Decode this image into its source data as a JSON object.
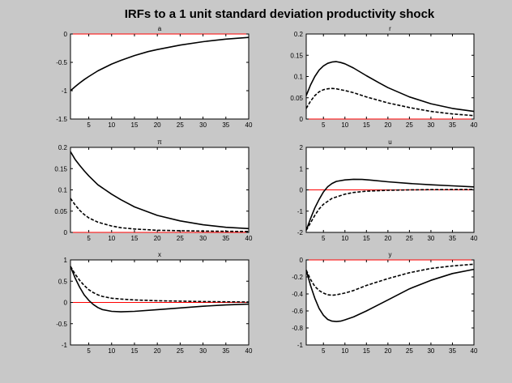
{
  "figure_title": "IRFs to a 1 unit standard deviation productivity shock",
  "colors": {
    "background": "#c8c8c8",
    "axes": "#ffffff",
    "zero_line": "#ff0000",
    "series": "#000000"
  },
  "chart_data": [
    {
      "type": "line",
      "title": "a",
      "xlim": [
        1,
        40
      ],
      "ylim": [
        -1.5,
        0
      ],
      "xticks": [
        5,
        10,
        15,
        20,
        25,
        30,
        35,
        40
      ],
      "yticks": [
        -1.5,
        -1,
        -0.5,
        0
      ],
      "ytick_labels": [
        "-1.5",
        "-1",
        "-0.5",
        "0"
      ],
      "zero_line": 0,
      "series": [
        {
          "style": "solid",
          "points": [
            [
              1,
              -1.0
            ],
            [
              2,
              -0.93
            ],
            [
              3,
              -0.865
            ],
            [
              4,
              -0.805
            ],
            [
              5,
              -0.75
            ],
            [
              7,
              -0.65
            ],
            [
              10,
              -0.53
            ],
            [
              12,
              -0.465
            ],
            [
              15,
              -0.38
            ],
            [
              18,
              -0.31
            ],
            [
              20,
              -0.275
            ],
            [
              25,
              -0.195
            ],
            [
              30,
              -0.135
            ],
            [
              35,
              -0.09
            ],
            [
              40,
              -0.06
            ]
          ]
        }
      ]
    },
    {
      "type": "line",
      "title": "r",
      "xlim": [
        1,
        40
      ],
      "ylim": [
        0,
        0.2
      ],
      "xticks": [
        5,
        10,
        15,
        20,
        25,
        30,
        35,
        40
      ],
      "yticks": [
        0,
        0.05,
        0.1,
        0.15,
        0.2
      ],
      "ytick_labels": [
        "0",
        "0.05",
        "0.1",
        "0.15",
        "0.2"
      ],
      "zero_line": 0,
      "series": [
        {
          "style": "solid",
          "points": [
            [
              1,
              0.055
            ],
            [
              2,
              0.08
            ],
            [
              3,
              0.1
            ],
            [
              4,
              0.115
            ],
            [
              5,
              0.125
            ],
            [
              6,
              0.131
            ],
            [
              7,
              0.134
            ],
            [
              8,
              0.135
            ],
            [
              9,
              0.133
            ],
            [
              10,
              0.13
            ],
            [
              12,
              0.12
            ],
            [
              15,
              0.102
            ],
            [
              18,
              0.085
            ],
            [
              20,
              0.074
            ],
            [
              25,
              0.052
            ],
            [
              30,
              0.036
            ],
            [
              35,
              0.025
            ],
            [
              40,
              0.018
            ]
          ]
        },
        {
          "style": "dashed",
          "points": [
            [
              1,
              0.025
            ],
            [
              2,
              0.042
            ],
            [
              3,
              0.055
            ],
            [
              4,
              0.064
            ],
            [
              5,
              0.069
            ],
            [
              6,
              0.071
            ],
            [
              7,
              0.072
            ],
            [
              8,
              0.071
            ],
            [
              9,
              0.069
            ],
            [
              10,
              0.067
            ],
            [
              12,
              0.062
            ],
            [
              15,
              0.052
            ],
            [
              20,
              0.038
            ],
            [
              25,
              0.027
            ],
            [
              30,
              0.018
            ],
            [
              35,
              0.012
            ],
            [
              40,
              0.008
            ]
          ]
        }
      ]
    },
    {
      "type": "line",
      "title": "π",
      "xlim": [
        1,
        40
      ],
      "ylim": [
        0,
        0.2
      ],
      "xticks": [
        5,
        10,
        15,
        20,
        25,
        30,
        35,
        40
      ],
      "yticks": [
        0,
        0.05,
        0.1,
        0.15,
        0.2
      ],
      "ytick_labels": [
        "0",
        "0.05",
        "0.1",
        "0.15",
        "0.2"
      ],
      "zero_line": 0,
      "series": [
        {
          "style": "solid",
          "points": [
            [
              1,
              0.19
            ],
            [
              2,
              0.172
            ],
            [
              3,
              0.158
            ],
            [
              4,
              0.145
            ],
            [
              5,
              0.133
            ],
            [
              7,
              0.112
            ],
            [
              10,
              0.09
            ],
            [
              12,
              0.077
            ],
            [
              15,
              0.06
            ],
            [
              20,
              0.04
            ],
            [
              25,
              0.027
            ],
            [
              30,
              0.018
            ],
            [
              35,
              0.012
            ],
            [
              40,
              0.009
            ]
          ]
        },
        {
          "style": "dashed",
          "points": [
            [
              1,
              0.08
            ],
            [
              2,
              0.065
            ],
            [
              3,
              0.052
            ],
            [
              4,
              0.042
            ],
            [
              5,
              0.034
            ],
            [
              7,
              0.024
            ],
            [
              10,
              0.015
            ],
            [
              12,
              0.011
            ],
            [
              15,
              0.008
            ],
            [
              20,
              0.005
            ],
            [
              25,
              0.004
            ],
            [
              30,
              0.003
            ],
            [
              40,
              0.002
            ]
          ]
        }
      ]
    },
    {
      "type": "line",
      "title": "u",
      "xlim": [
        1,
        40
      ],
      "ylim": [
        -2,
        2
      ],
      "xticks": [
        5,
        10,
        15,
        20,
        25,
        30,
        35,
        40
      ],
      "yticks": [
        -2,
        -1,
        0,
        1,
        2
      ],
      "ytick_labels": [
        "-2",
        "-1",
        "0",
        "1",
        "2"
      ],
      "zero_line": 0,
      "series": [
        {
          "style": "solid",
          "points": [
            [
              1,
              -1.9
            ],
            [
              2,
              -1.35
            ],
            [
              3,
              -0.85
            ],
            [
              4,
              -0.45
            ],
            [
              5,
              -0.1
            ],
            [
              6,
              0.15
            ],
            [
              7,
              0.3
            ],
            [
              8,
              0.4
            ],
            [
              10,
              0.47
            ],
            [
              12,
              0.5
            ],
            [
              14,
              0.49
            ],
            [
              16,
              0.46
            ],
            [
              20,
              0.38
            ],
            [
              25,
              0.3
            ],
            [
              30,
              0.24
            ],
            [
              35,
              0.19
            ],
            [
              40,
              0.14
            ]
          ]
        },
        {
          "style": "dashed",
          "points": [
            [
              1,
              -1.9
            ],
            [
              2,
              -1.55
            ],
            [
              3,
              -1.2
            ],
            [
              4,
              -0.9
            ],
            [
              5,
              -0.68
            ],
            [
              7,
              -0.4
            ],
            [
              10,
              -0.2
            ],
            [
              12,
              -0.12
            ],
            [
              15,
              -0.06
            ],
            [
              20,
              -0.02
            ],
            [
              25,
              0.0
            ],
            [
              30,
              0.01
            ],
            [
              40,
              0.02
            ]
          ]
        }
      ]
    },
    {
      "type": "line",
      "title": "x",
      "xlim": [
        1,
        40
      ],
      "ylim": [
        -1,
        1
      ],
      "xticks": [
        5,
        10,
        15,
        20,
        25,
        30,
        35,
        40
      ],
      "yticks": [
        -1,
        -0.5,
        0,
        0.5,
        1
      ],
      "ytick_labels": [
        "-1",
        "-0.5",
        "0",
        "0.5",
        "1"
      ],
      "zero_line": 0,
      "series": [
        {
          "style": "solid",
          "points": [
            [
              1,
              0.85
            ],
            [
              2,
              0.58
            ],
            [
              3,
              0.36
            ],
            [
              4,
              0.18
            ],
            [
              5,
              0.05
            ],
            [
              6,
              -0.05
            ],
            [
              7,
              -0.12
            ],
            [
              8,
              -0.17
            ],
            [
              10,
              -0.21
            ],
            [
              12,
              -0.22
            ],
            [
              15,
              -0.21
            ],
            [
              20,
              -0.17
            ],
            [
              25,
              -0.13
            ],
            [
              30,
              -0.09
            ],
            [
              35,
              -0.06
            ],
            [
              40,
              -0.04
            ]
          ]
        },
        {
          "style": "dashed",
          "points": [
            [
              1,
              0.85
            ],
            [
              2,
              0.67
            ],
            [
              3,
              0.52
            ],
            [
              4,
              0.4
            ],
            [
              5,
              0.3
            ],
            [
              6,
              0.23
            ],
            [
              7,
              0.18
            ],
            [
              8,
              0.14
            ],
            [
              10,
              0.1
            ],
            [
              12,
              0.08
            ],
            [
              15,
              0.06
            ],
            [
              20,
              0.04
            ],
            [
              25,
              0.03
            ],
            [
              30,
              0.02
            ],
            [
              40,
              0.01
            ]
          ]
        }
      ]
    },
    {
      "type": "line",
      "title": "y",
      "xlim": [
        1,
        40
      ],
      "ylim": [
        -1,
        0
      ],
      "xticks": [
        5,
        10,
        15,
        20,
        25,
        30,
        35,
        40
      ],
      "yticks": [
        -1,
        -0.8,
        -0.6,
        -0.4,
        -0.2,
        0
      ],
      "ytick_labels": [
        "-1",
        "-0.8",
        "-0.6",
        "-0.4",
        "-0.2",
        "0"
      ],
      "zero_line": 0,
      "series": [
        {
          "style": "solid",
          "points": [
            [
              1,
              -0.12
            ],
            [
              2,
              -0.3
            ],
            [
              3,
              -0.45
            ],
            [
              4,
              -0.57
            ],
            [
              5,
              -0.65
            ],
            [
              6,
              -0.7
            ],
            [
              7,
              -0.72
            ],
            [
              8,
              -0.725
            ],
            [
              9,
              -0.72
            ],
            [
              10,
              -0.705
            ],
            [
              12,
              -0.67
            ],
            [
              15,
              -0.6
            ],
            [
              20,
              -0.47
            ],
            [
              25,
              -0.34
            ],
            [
              30,
              -0.24
            ],
            [
              35,
              -0.16
            ],
            [
              40,
              -0.11
            ]
          ]
        },
        {
          "style": "dashed",
          "points": [
            [
              1,
              -0.12
            ],
            [
              2,
              -0.23
            ],
            [
              3,
              -0.31
            ],
            [
              4,
              -0.36
            ],
            [
              5,
              -0.39
            ],
            [
              6,
              -0.41
            ],
            [
              7,
              -0.415
            ],
            [
              8,
              -0.41
            ],
            [
              10,
              -0.39
            ],
            [
              12,
              -0.36
            ],
            [
              15,
              -0.3
            ],
            [
              20,
              -0.22
            ],
            [
              25,
              -0.15
            ],
            [
              30,
              -0.1
            ],
            [
              35,
              -0.07
            ],
            [
              40,
              -0.05
            ]
          ]
        }
      ]
    }
  ]
}
